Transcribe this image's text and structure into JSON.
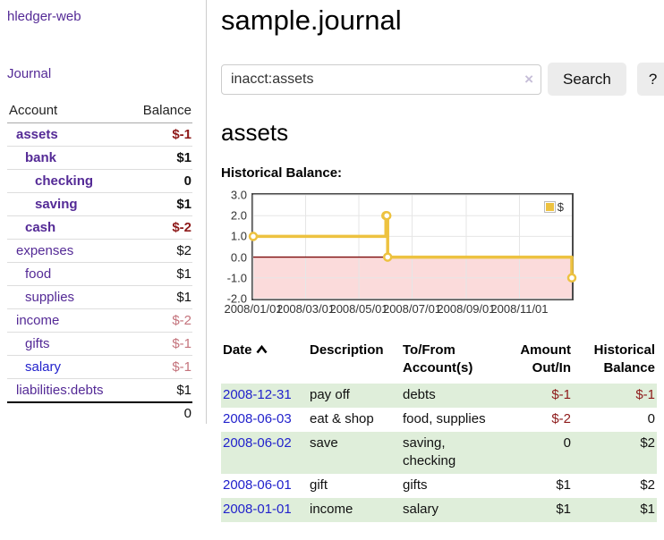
{
  "sidebar": {
    "brand": "hledger-web",
    "nav": {
      "journal_label": "Journal"
    },
    "accounts_table": {
      "col_account": "Account",
      "col_balance": "Balance",
      "rows": [
        {
          "name": "assets",
          "balance": "$-1"
        },
        {
          "name": "bank",
          "balance": "$1"
        },
        {
          "name": "checking",
          "balance": "0"
        },
        {
          "name": "saving",
          "balance": "$1"
        },
        {
          "name": "cash",
          "balance": "$-2"
        },
        {
          "name": "expenses",
          "balance": "$2"
        },
        {
          "name": "food",
          "balance": "$1"
        },
        {
          "name": "supplies",
          "balance": "$1"
        },
        {
          "name": "income",
          "balance": "$-2"
        },
        {
          "name": "gifts",
          "balance": "$-1"
        },
        {
          "name": "salary",
          "balance": "$-1"
        },
        {
          "name": "liabilities:debts",
          "balance": "$1"
        }
      ],
      "total": "0"
    }
  },
  "main": {
    "title": "sample.journal",
    "search": {
      "value": "inacct:assets",
      "clear_icon": "×",
      "button_label": "Search",
      "help_label": "?"
    },
    "account_heading": "assets",
    "chart_label": "Historical Balance:"
  },
  "chart_data": {
    "type": "line",
    "step": true,
    "title": "Historical Balance",
    "x_range": [
      "2008-01-01",
      "2008-12-31"
    ],
    "ylim": [
      -2,
      3
    ],
    "yticks": [
      {
        "value": 3,
        "label": "3.0"
      },
      {
        "value": 2,
        "label": "2.0"
      },
      {
        "value": 1,
        "label": "1.0"
      },
      {
        "value": 0,
        "label": "0.0"
      },
      {
        "value": -1,
        "label": "-1.0"
      },
      {
        "value": -2,
        "label": "-2.0"
      }
    ],
    "xticks": [
      {
        "date": "2008-01-01",
        "label": "2008/01/01"
      },
      {
        "date": "2008-03-01",
        "label": "2008/03/01"
      },
      {
        "date": "2008-05-01",
        "label": "2008/05/01"
      },
      {
        "date": "2008-07-01",
        "label": "2008/07/01"
      },
      {
        "date": "2008-09-01",
        "label": "2008/09/01"
      },
      {
        "date": "2008-11-01",
        "label": "2008/11/01"
      }
    ],
    "series": [
      {
        "name": "$",
        "color": "#EDC240",
        "points": [
          {
            "date": "2008-01-01",
            "value": 1
          },
          {
            "date": "2008-06-01",
            "value": 2
          },
          {
            "date": "2008-06-02",
            "value": 2
          },
          {
            "date": "2008-06-03",
            "value": 0
          },
          {
            "date": "2008-12-31",
            "value": -1
          }
        ]
      }
    ],
    "legend": {
      "position": "top-right",
      "label": "$"
    },
    "grid": {
      "on": true,
      "color": "#e6e6e6",
      "border_color": "#4a4a4a"
    },
    "markings": {
      "below_zero_fill": "#fbdbdb",
      "zero_line_color": "#7d0a0a"
    }
  },
  "register_table": {
    "headers": {
      "date": "Date",
      "description": "Description",
      "tofrom": "To/From Account(s)",
      "amount": "Amount Out/In",
      "balance": "Historical Balance"
    },
    "rows": [
      {
        "date": "2008-12-31",
        "description": "pay off",
        "accounts": "debts",
        "amount": "$-1",
        "balance": "$-1"
      },
      {
        "date": "2008-06-03",
        "description": "eat & shop",
        "accounts": "food, supplies",
        "amount": "$-2",
        "balance": "0"
      },
      {
        "date": "2008-06-02",
        "description": "save",
        "accounts": "saving, checking",
        "amount": "0",
        "balance": "$2"
      },
      {
        "date": "2008-06-01",
        "description": "gift",
        "accounts": "gifts",
        "amount": "$1",
        "balance": "$2"
      },
      {
        "date": "2008-01-01",
        "description": "income",
        "accounts": "salary",
        "amount": "$1",
        "balance": "$1"
      }
    ]
  },
  "colors": {
    "link_purple": "#542a96",
    "link_blue": "#2222cc",
    "negative_strong": "#8e1a1a",
    "negative_soft": "#c4737c",
    "row_stripe_green": "#dfeeda",
    "series_yellow": "#EDC240",
    "below_zero_pink": "#fbdbdb"
  }
}
